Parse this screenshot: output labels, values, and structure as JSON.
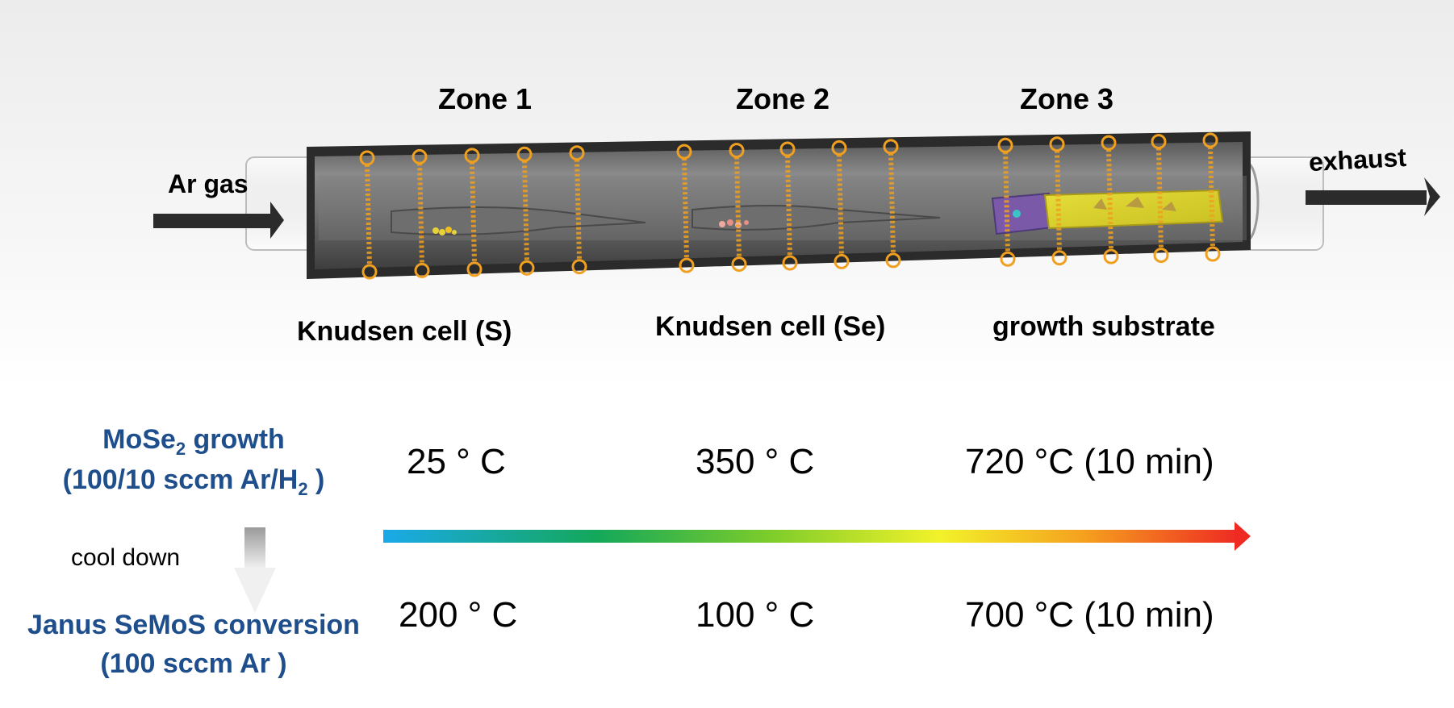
{
  "zones": {
    "z1": "Zone 1",
    "z2": "Zone 2",
    "z3": "Zone 3"
  },
  "labels": {
    "ar_gas": "Ar gas",
    "exhaust": "exhaust",
    "knudsen_s": "Knudsen cell (S)",
    "knudsen_se": "Knudsen cell (Se)",
    "substrate": "growth substrate"
  },
  "growth_step": {
    "title_main": "MoSe",
    "title_sub": "2",
    "title_rest": " growth",
    "flow_pre": "(100/10 sccm Ar/H",
    "flow_sub": "2",
    "flow_post": " )",
    "temps": [
      "25 °  C",
      "350 °  C",
      "720 °C (10 min)"
    ]
  },
  "transition": {
    "cool_down": "cool down"
  },
  "conversion_step": {
    "title": "Janus SeMoS conversion",
    "flow": "(100 sccm Ar )",
    "temps": [
      "200 °  C",
      "100 °  C",
      "700 °C (10 min)"
    ]
  },
  "colors": {
    "gradient": [
      "#1aa9e8",
      "#14a85a",
      "#7ccc2a",
      "#f2f22a",
      "#f5a01e",
      "#ee2a22"
    ],
    "coil": "#f0a020",
    "blue_text": "#1f4e8c"
  }
}
